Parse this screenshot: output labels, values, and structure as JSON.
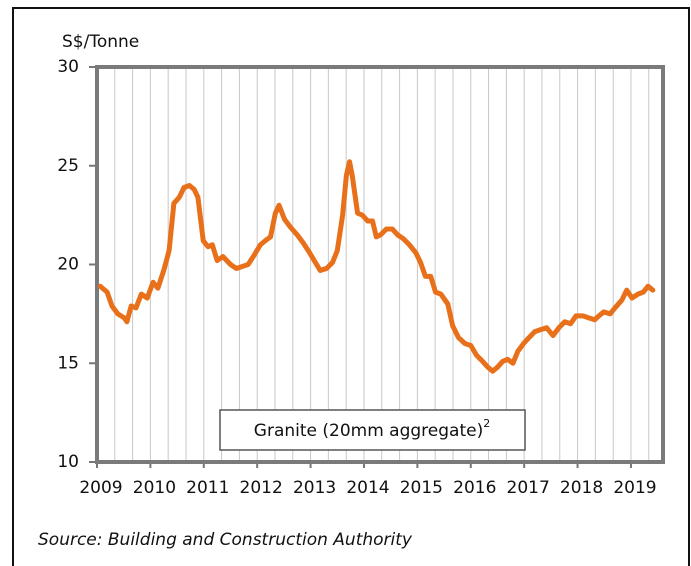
{
  "chart_data": {
    "type": "line",
    "y_label": "S$/Tonne",
    "source": "Source: Building and Construction Authority",
    "xlim": [
      2009,
      2019.6
    ],
    "xticks": [
      2009,
      2010,
      2011,
      2012,
      2013,
      2014,
      2015,
      2016,
      2017,
      2018,
      2019
    ],
    "xgrid": [
      2009.333,
      2009.667,
      2010,
      2010.333,
      2010.667,
      2011,
      2011.333,
      2011.667,
      2012,
      2012.333,
      2012.667,
      2013,
      2013.333,
      2013.667,
      2014,
      2014.333,
      2014.667,
      2015,
      2015.333,
      2015.667,
      2016,
      2016.333,
      2016.667,
      2017,
      2017.333,
      2017.667,
      2018,
      2018.333,
      2018.667,
      2019,
      2019.333
    ],
    "ylim": [
      10,
      30
    ],
    "yticks": [
      10,
      15,
      20,
      25,
      30
    ],
    "grid": true,
    "series": [
      {
        "name": "Granite (20mm aggregate)",
        "name_note": "2",
        "color": "#e8701a",
        "x": [
          2009.06,
          2009.19,
          2009.28,
          2009.39,
          2009.51,
          2009.56,
          2009.64,
          2009.73,
          2009.83,
          2009.94,
          2010.05,
          2010.14,
          2010.25,
          2010.35,
          2010.44,
          2010.54,
          2010.63,
          2010.73,
          2010.82,
          2010.89,
          2010.99,
          2011.08,
          2011.16,
          2011.25,
          2011.36,
          2011.5,
          2011.61,
          2011.72,
          2011.83,
          2011.95,
          2012.06,
          2012.15,
          2012.25,
          2012.34,
          2012.41,
          2012.51,
          2012.62,
          2012.75,
          2012.86,
          2012.98,
          2013.09,
          2013.18,
          2013.3,
          2013.41,
          2013.5,
          2013.6,
          2013.67,
          2013.73,
          2013.78,
          2013.88,
          2013.97,
          2014.07,
          2014.16,
          2014.23,
          2014.31,
          2014.42,
          2014.53,
          2014.63,
          2014.74,
          2014.85,
          2014.97,
          2015.06,
          2015.15,
          2015.25,
          2015.34,
          2015.44,
          2015.57,
          2015.66,
          2015.77,
          2015.89,
          2016,
          2016.11,
          2016.22,
          2016.32,
          2016.41,
          2016.5,
          2016.6,
          2016.69,
          2016.79,
          2016.88,
          2016.99,
          2017.09,
          2017.2,
          2017.31,
          2017.42,
          2017.54,
          2017.65,
          2017.76,
          2017.87,
          2017.97,
          2018.1,
          2018.21,
          2018.32,
          2018.4,
          2018.49,
          2018.61,
          2018.7,
          2018.83,
          2018.92,
          2019.02,
          2019.13,
          2019.23,
          2019.32,
          2019.41
        ],
        "values": [
          18.9,
          18.6,
          17.9,
          17.5,
          17.3,
          17.1,
          17.9,
          17.8,
          18.5,
          18.3,
          19.1,
          18.8,
          19.7,
          20.7,
          23.1,
          23.4,
          23.9,
          24.0,
          23.8,
          23.4,
          21.2,
          20.9,
          21.0,
          20.2,
          20.4,
          20.0,
          19.8,
          19.9,
          20.0,
          20.5,
          21.0,
          21.2,
          21.4,
          22.6,
          23.0,
          22.3,
          21.9,
          21.5,
          21.1,
          20.6,
          20.1,
          19.7,
          19.8,
          20.1,
          20.7,
          22.5,
          24.5,
          25.2,
          24.5,
          22.6,
          22.5,
          22.2,
          22.2,
          21.4,
          21.5,
          21.8,
          21.8,
          21.5,
          21.3,
          21.0,
          20.6,
          20.1,
          19.4,
          19.4,
          18.6,
          18.5,
          18.0,
          16.9,
          16.3,
          16.0,
          15.9,
          15.4,
          15.1,
          14.8,
          14.6,
          14.8,
          15.1,
          15.2,
          15.0,
          15.6,
          16.0,
          16.3,
          16.6,
          16.7,
          16.8,
          16.4,
          16.8,
          17.1,
          17.0,
          17.4,
          17.4,
          17.3,
          17.2,
          17.4,
          17.6,
          17.5,
          17.8,
          18.2,
          18.7,
          18.3,
          18.5,
          18.6,
          18.9,
          18.7
        ]
      }
    ]
  }
}
